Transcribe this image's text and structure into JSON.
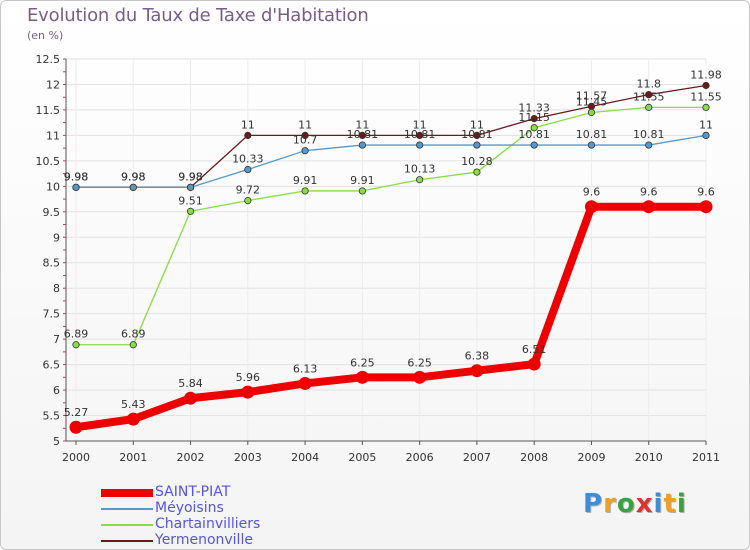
{
  "title": "Evolution du Taux de Taxe d'Habitation",
  "unit_label": "(en %)",
  "chart_data": {
    "type": "line",
    "x": [
      "2000",
      "2001",
      "2002",
      "2003",
      "2004",
      "2005",
      "2006",
      "2007",
      "2008",
      "2009",
      "2010",
      "2011"
    ],
    "ylim": [
      5,
      12.5
    ],
    "yticks": [
      "5",
      "5.5",
      "6",
      "6.5",
      "7",
      "7.5",
      "8",
      "8.5",
      "9",
      "9.5",
      "10",
      "10.5",
      "11",
      "11.5",
      "12",
      "12.5"
    ],
    "grid": true,
    "legend_placement": "bottom-left",
    "series": [
      {
        "name": "Yermenonville",
        "color": "#6b1a1a",
        "values": [
          9.98,
          9.98,
          9.98,
          11,
          11,
          11,
          11,
          11,
          11.33,
          11.57,
          11.8,
          11.98
        ],
        "labels": [
          "9.98",
          "9.98",
          "9.98",
          "11",
          "11",
          "11",
          "11",
          "11",
          "11.33",
          "11.57",
          "11.8",
          "11.98"
        ]
      },
      {
        "name": "Chartainvilliers",
        "color": "#88dd44",
        "values": [
          6.89,
          6.89,
          9.51,
          9.72,
          9.91,
          9.91,
          10.13,
          10.28,
          11.15,
          11.45,
          11.55,
          11.55
        ],
        "labels": [
          "6.89",
          "6.89",
          "9.51",
          "9.72",
          "9.91",
          "9.91",
          "10.13",
          "10.28",
          "11.15",
          "11.45",
          "11.55",
          "11.55"
        ]
      },
      {
        "name": "Méyoisins",
        "color": "#5599cc",
        "values": [
          9.98,
          9.98,
          9.98,
          10.33,
          10.7,
          10.81,
          10.81,
          10.81,
          10.81,
          10.81,
          10.81,
          11
        ],
        "labels": [
          "9.98",
          "9.98",
          "9.98",
          "10.33",
          "10.7",
          "10.81",
          "10.81",
          "10.81",
          "10.81",
          "10.81",
          "10.81",
          "11"
        ]
      },
      {
        "name": "SAINT-PIAT",
        "color": "#ee0000",
        "values": [
          5.27,
          5.43,
          5.84,
          5.96,
          6.13,
          6.25,
          6.25,
          6.38,
          6.51,
          9.6,
          9.6,
          9.6
        ],
        "labels": [
          "5.27",
          "5.43",
          "5.84",
          "5.96",
          "6.13",
          "6.25",
          "6.25",
          "6.38",
          "6.51",
          "9.6",
          "9.6",
          "9.6"
        ]
      }
    ],
    "legend": [
      {
        "name": "SAINT-PIAT",
        "color": "#ee0000",
        "thick": true
      },
      {
        "name": "Méyoisins",
        "color": "#5599cc",
        "thick": false
      },
      {
        "name": "Chartainvilliers",
        "color": "#88dd44",
        "thick": false
      },
      {
        "name": "Yermenonville",
        "color": "#6b1a1a",
        "thick": false
      }
    ]
  },
  "brand": {
    "letters": [
      "P",
      "r",
      "o",
      "x",
      "i",
      "t",
      "i"
    ],
    "colors": [
      "#3a8fd8",
      "#f0a020",
      "#3aa040",
      "#e03030",
      "#3a8fd8",
      "#f0a020",
      "#3aa040"
    ]
  }
}
